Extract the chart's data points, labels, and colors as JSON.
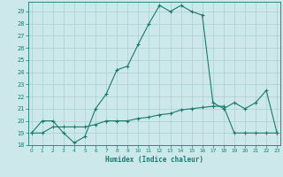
{
  "xlabel": "Humidex (Indice chaleur)",
  "line1_x": [
    0,
    1,
    2,
    3,
    4,
    5,
    6,
    7,
    8,
    9,
    10,
    11,
    12,
    13,
    14,
    15,
    16,
    17,
    18,
    19,
    20,
    21,
    22,
    23
  ],
  "line1_y": [
    19,
    20,
    20,
    19.0,
    18.2,
    18.7,
    21,
    22.2,
    24.2,
    24.5,
    26.3,
    28,
    29.5,
    29.0,
    29.5,
    29.0,
    28.7,
    21.5,
    21.0,
    21.5,
    21.0,
    21.5,
    22.5,
    19.0
  ],
  "line2_x": [
    0,
    1,
    2,
    3,
    4,
    5,
    6,
    7,
    8,
    9,
    10,
    11,
    12,
    13,
    14,
    15,
    16,
    17,
    18,
    19,
    20,
    21,
    22,
    23
  ],
  "line2_y": [
    19,
    19,
    19.5,
    19.5,
    19.5,
    19.5,
    19.7,
    20.0,
    20.0,
    20.0,
    20.2,
    20.3,
    20.5,
    20.6,
    20.9,
    21.0,
    21.1,
    21.2,
    21.2,
    19.0,
    19.0,
    19.0,
    19.0,
    19.0
  ],
  "line_color": "#1a7a6e",
  "bg_color": "#cde8ea",
  "grid_color": "#a8cfd2",
  "xlim": [
    0,
    23
  ],
  "ylim": [
    18,
    29.8
  ],
  "xticks": [
    0,
    1,
    2,
    3,
    4,
    5,
    6,
    7,
    8,
    9,
    10,
    11,
    12,
    13,
    14,
    15,
    16,
    17,
    18,
    19,
    20,
    21,
    22,
    23
  ],
  "yticks": [
    18,
    19,
    20,
    21,
    22,
    23,
    24,
    25,
    26,
    27,
    28,
    29
  ],
  "marker": "+"
}
